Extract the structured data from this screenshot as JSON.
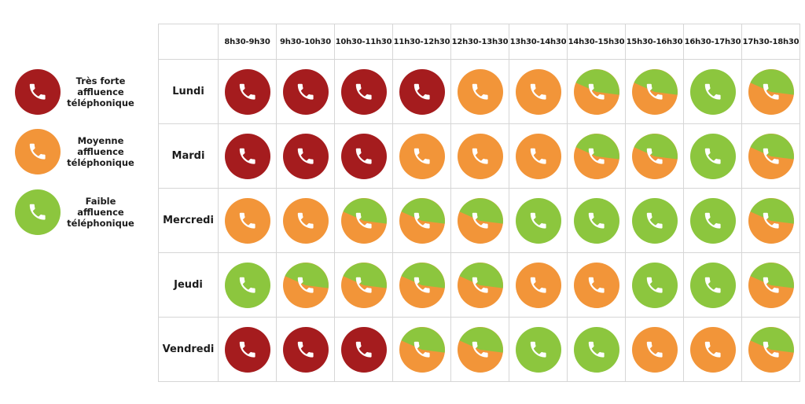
{
  "colors": {
    "strong": "#a51c1e",
    "medium": "#f29539",
    "low": "#8cc63e",
    "handset": "#ffffff",
    "grid_line": "#d6d6d6"
  },
  "legend": [
    {
      "level": "strong",
      "label": "Très forte\naffluence\ntéléphonique",
      "icon": "phone-icon"
    },
    {
      "level": "medium",
      "label": "Moyenne\naffluence\ntéléphonique",
      "icon": "phone-icon"
    },
    {
      "level": "low",
      "label": "Faible\naffluence\ntéléphonique",
      "icon": "phone-icon"
    }
  ],
  "time_slots": [
    "8h30-9h30",
    "9h30-10h30",
    "10h30-11h30",
    "11h30-12h30",
    "12h30-13h30",
    "13h30-14h30",
    "14h30-15h30",
    "15h30-16h30",
    "16h30-17h30",
    "17h30-18h30"
  ],
  "days": [
    {
      "name": "Lundi",
      "levels": [
        "strong",
        "strong",
        "strong",
        "strong",
        "medium",
        "medium",
        "medium-low",
        "medium-low",
        "low",
        "medium-low"
      ]
    },
    {
      "name": "Mardi",
      "levels": [
        "strong",
        "strong",
        "strong",
        "medium",
        "medium",
        "medium",
        "medium-low",
        "medium-low",
        "low",
        "medium-low"
      ]
    },
    {
      "name": "Mercredi",
      "levels": [
        "medium",
        "medium",
        "medium-low",
        "medium-low",
        "medium-low",
        "low",
        "low",
        "low",
        "low",
        "medium-low"
      ]
    },
    {
      "name": "Jeudi",
      "levels": [
        "low",
        "medium-low",
        "medium-low",
        "medium-low",
        "medium-low",
        "medium",
        "medium",
        "low",
        "low",
        "medium-low"
      ]
    },
    {
      "name": "Vendredi",
      "levels": [
        "strong",
        "strong",
        "strong",
        "medium-low",
        "medium-low",
        "low",
        "low",
        "medium",
        "medium",
        "medium-low"
      ]
    }
  ]
}
